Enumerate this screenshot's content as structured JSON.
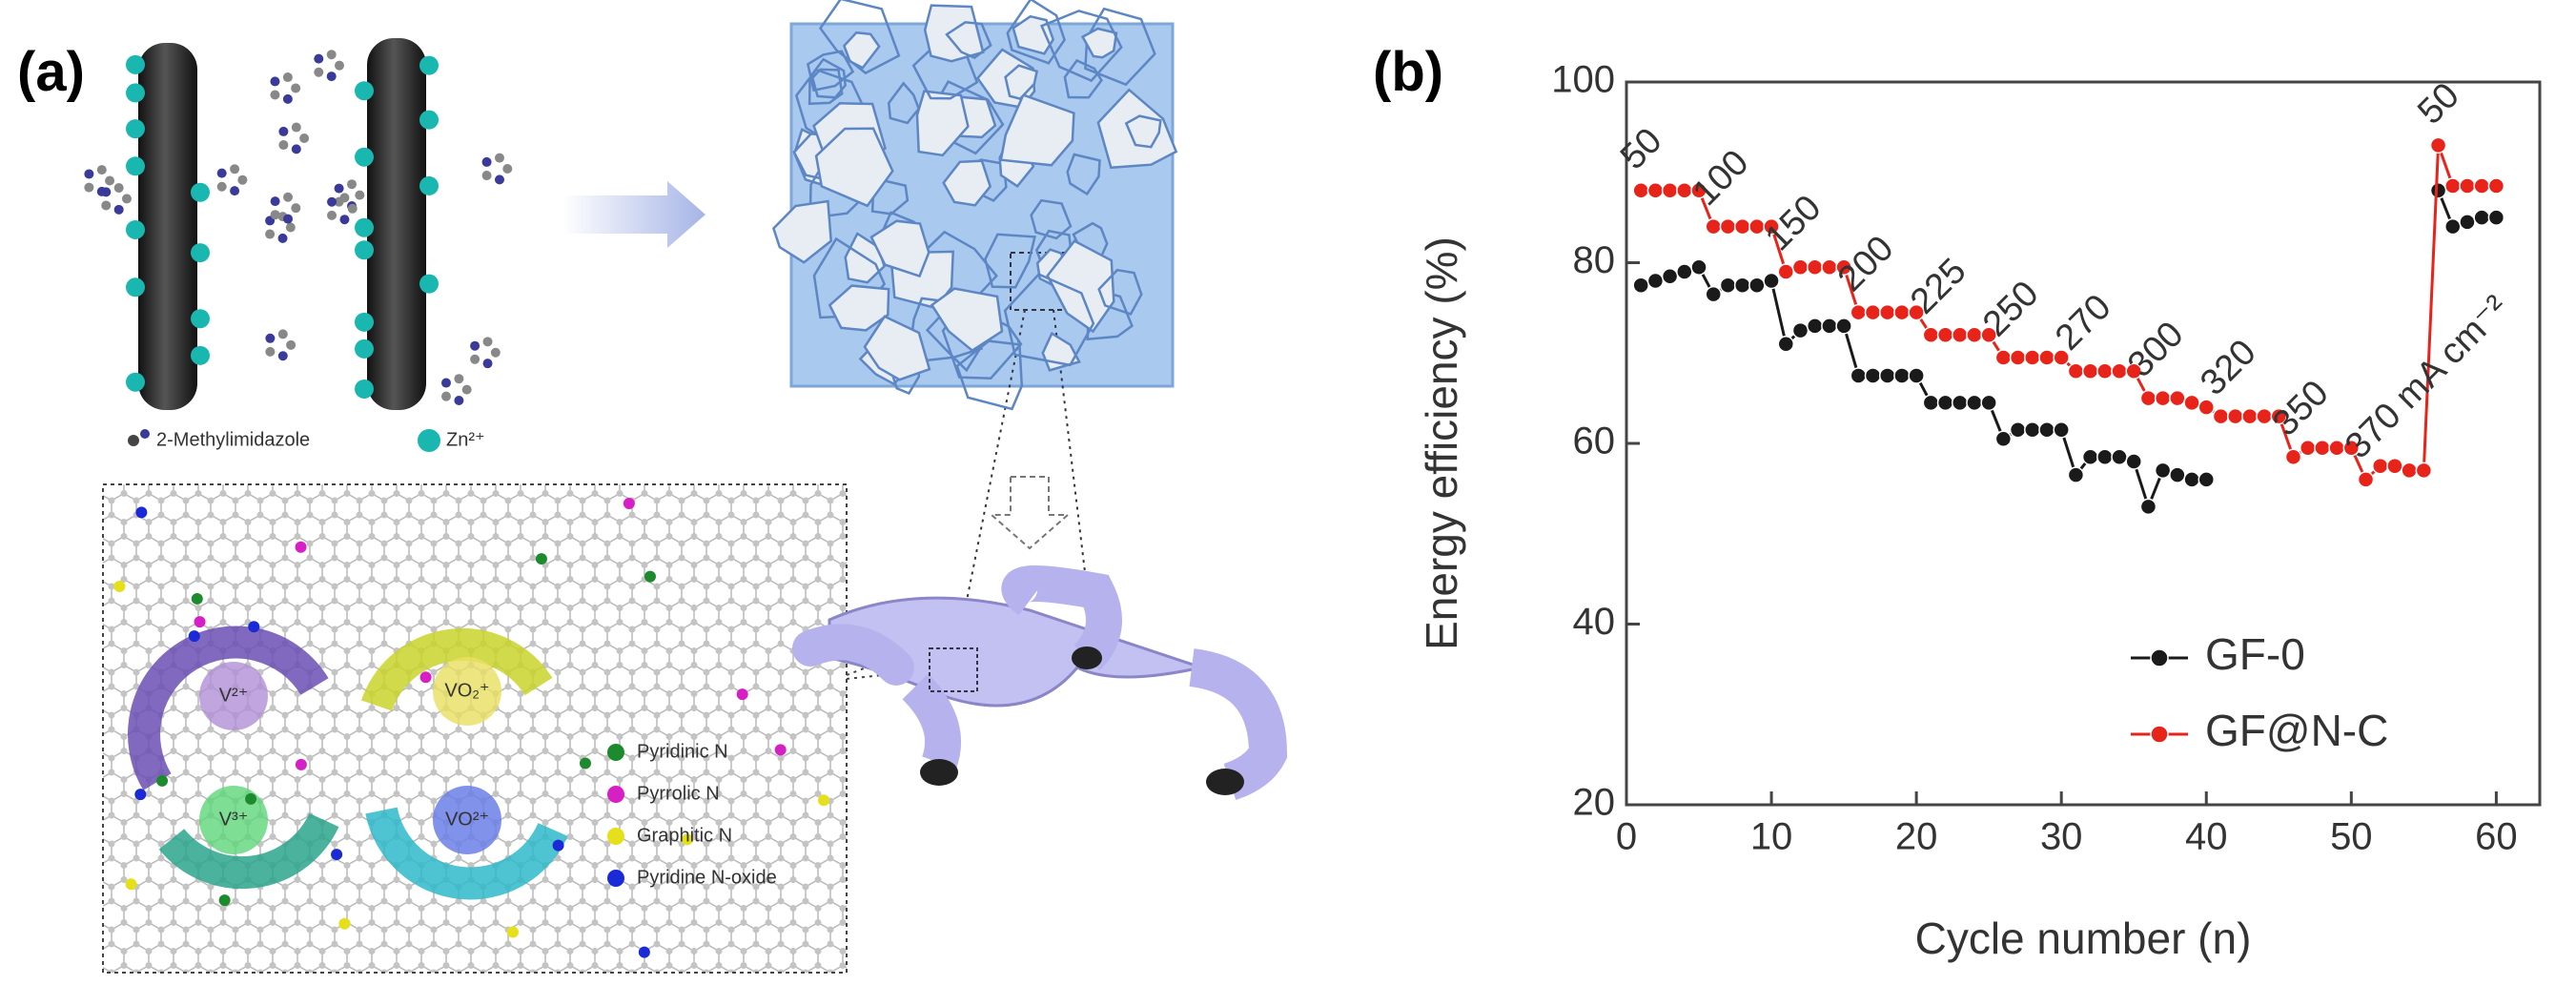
{
  "panel_labels": [
    "(a)",
    "(b)"
  ],
  "diagram": {
    "molecule_legend": [
      "2-Methylimidazole",
      "Zn²⁺"
    ],
    "ions": [
      "V²⁺",
      "V³⁺",
      "VO₂⁺",
      "VO²⁺"
    ],
    "dopant_legend": [
      {
        "label": "Pyridinic N",
        "color": "#1e8a2e"
      },
      {
        "label": "Pyrrolic N",
        "color": "#d61fc4"
      },
      {
        "label": "Graphitic N",
        "color": "#e6e01a"
      },
      {
        "label": "Pyridine N-oxide",
        "color": "#1a2ad6"
      }
    ]
  },
  "chart_data": {
    "type": "line",
    "xlabel": "Cycle number (n)",
    "ylabel": "Energy efficiency (%)",
    "x": [
      1,
      2,
      3,
      4,
      5,
      6,
      7,
      8,
      9,
      10,
      11,
      12,
      13,
      14,
      15,
      16,
      17,
      18,
      19,
      20,
      21,
      22,
      23,
      24,
      25,
      26,
      27,
      28,
      29,
      30,
      31,
      32,
      33,
      34,
      35,
      36,
      37,
      38,
      39,
      40,
      41,
      42,
      43,
      44,
      45,
      46,
      47,
      48,
      49,
      50,
      51,
      52,
      53,
      54,
      55,
      56,
      57,
      58,
      59,
      60
    ],
    "series": [
      {
        "name": "GF-0",
        "color": "#1a1a1a",
        "values": [
          77.5,
          78,
          78.5,
          79,
          79.5,
          76.5,
          77.5,
          77.5,
          77.5,
          78,
          71,
          72.5,
          73,
          73,
          73,
          67.5,
          67.5,
          67.5,
          67.5,
          67.5,
          64.5,
          64.5,
          64.5,
          64.5,
          64.5,
          60.5,
          61.5,
          61.5,
          61.5,
          61.5,
          56.5,
          58.5,
          58.5,
          58.5,
          58,
          53,
          57,
          56.5,
          56,
          56,
          null,
          null,
          null,
          null,
          null,
          null,
          null,
          null,
          null,
          null,
          null,
          null,
          null,
          null,
          null,
          88,
          84,
          84.5,
          85,
          85
        ]
      },
      {
        "name": "GF@N-C",
        "color": "#e8231a",
        "values": [
          88,
          88,
          88,
          88,
          88,
          84,
          84,
          84,
          84,
          84,
          79,
          79.5,
          79.5,
          79.5,
          79.5,
          74.5,
          74.5,
          74.5,
          74.5,
          74.5,
          72,
          72,
          72,
          72,
          72,
          69.5,
          69.5,
          69.5,
          69.5,
          69.5,
          68,
          68,
          68,
          68,
          68,
          65,
          65,
          65,
          64.5,
          64,
          63,
          63,
          63,
          63,
          63,
          58.5,
          59.5,
          59.5,
          59.5,
          59.5,
          56,
          57.5,
          57.5,
          57,
          57,
          93,
          88.5,
          88.5,
          88.5,
          88.5
        ]
      }
    ],
    "annotations": [
      "50",
      "100",
      "150",
      "200",
      "225",
      "250",
      "270",
      "300",
      "320",
      "350",
      "370 mA cm⁻²",
      "50"
    ],
    "xlim": [
      0,
      63
    ],
    "xticks": [
      0,
      10,
      20,
      30,
      40,
      50,
      60
    ],
    "ylim": [
      20,
      100
    ],
    "yticks": [
      20,
      40,
      60,
      80,
      100
    ],
    "legend": "lower right"
  }
}
